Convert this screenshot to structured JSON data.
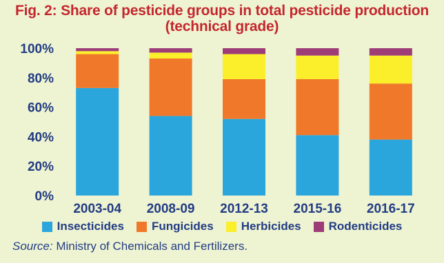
{
  "title": {
    "line1": "Fig. 2: Share of pesticide groups in total pesticide production",
    "line2": "(technical grade)"
  },
  "source": {
    "label": "Source:",
    "text": " Ministry of Chemicals and Fertilizers."
  },
  "colors": {
    "background": "#eef4d2",
    "Insecticides": "#2aa6dd",
    "Fungicides": "#f0782a",
    "Herbicides": "#fbef2c",
    "Rodenticides": "#9e3c78"
  },
  "chart_data": {
    "type": "bar",
    "stacked": true,
    "title": "Fig. 2: Share of pesticide groups in total pesticide production (technical grade)",
    "categories": [
      "2003-04",
      "2008-09",
      "2012-13",
      "2015-16",
      "2016-17"
    ],
    "series": [
      {
        "name": "Insecticides",
        "values": [
          73,
          54,
          52,
          41,
          38
        ]
      },
      {
        "name": "Fungicides",
        "values": [
          23,
          39,
          27,
          38,
          38
        ]
      },
      {
        "name": "Herbicides",
        "values": [
          2,
          4,
          17,
          16,
          19
        ]
      },
      {
        "name": "Rodenticides",
        "values": [
          2,
          3,
          4,
          5,
          5
        ]
      }
    ],
    "ylim": [
      0,
      100
    ],
    "yticks": [
      "0%",
      "20%",
      "40%",
      "60%",
      "80%",
      "100%"
    ],
    "ytick_values": [
      0,
      20,
      40,
      60,
      80,
      100
    ],
    "grid": false,
    "legend_position": "bottom"
  }
}
